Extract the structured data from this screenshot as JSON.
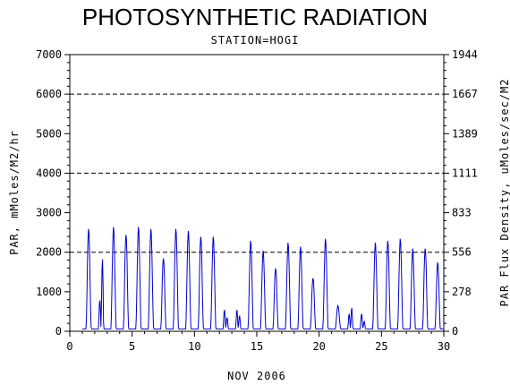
{
  "title": "PHOTOSYNTHETIC RADIATION",
  "subtitle": "STATION=HOGI",
  "chart_data": {
    "type": "line",
    "title": "PHOTOSYNTHETIC RADIATION",
    "subtitle": "STATION=HOGI",
    "xlabel": "NOV 2006",
    "ylabel": "PAR, mMoles/M2/hr",
    "y2label": "PAR Flux Density, uMoles/sec/M2",
    "xlim": [
      0,
      30
    ],
    "ylim": [
      0,
      7000
    ],
    "x_ticks": [
      0,
      5,
      10,
      15,
      20,
      25,
      30
    ],
    "x_tick_labels": [
      "0",
      "5",
      "10",
      "15",
      "20",
      "25",
      "30"
    ],
    "y_ticks": [
      0,
      1000,
      2000,
      3000,
      4000,
      5000,
      6000,
      7000
    ],
    "y_tick_labels": [
      "0",
      "1000",
      "2000",
      "3000",
      "4000",
      "5000",
      "6000",
      "7000"
    ],
    "y2_tick_labels": [
      "0",
      "278",
      "556",
      "833",
      "1111",
      "1389",
      "1667",
      "1944"
    ],
    "grid_y": [
      2000,
      4000,
      6000
    ],
    "grid_style": "dashed",
    "line_color": "#0000cc",
    "series": [
      {
        "daily_peaks": [
          {
            "day": 1,
            "peaks": [
              2600
            ]
          },
          {
            "day": 2,
            "peaks": [
              800,
              1850
            ]
          },
          {
            "day": 3,
            "peaks": [
              2650
            ]
          },
          {
            "day": 4,
            "peaks": [
              2450
            ]
          },
          {
            "day": 5,
            "peaks": [
              2650
            ]
          },
          {
            "day": 6,
            "peaks": [
              2600
            ]
          },
          {
            "day": 7,
            "peaks": [
              1850
            ]
          },
          {
            "day": 8,
            "peaks": [
              2600
            ]
          },
          {
            "day": 9,
            "peaks": [
              2550
            ]
          },
          {
            "day": 10,
            "peaks": [
              2400
            ]
          },
          {
            "day": 11,
            "peaks": [
              2400
            ]
          },
          {
            "day": 12,
            "peaks": [
              550,
              350
            ]
          },
          {
            "day": 13,
            "peaks": [
              550,
              400
            ]
          },
          {
            "day": 14,
            "peaks": [
              2300
            ]
          },
          {
            "day": 15,
            "peaks": [
              2050
            ]
          },
          {
            "day": 16,
            "peaks": [
              1600
            ]
          },
          {
            "day": 17,
            "peaks": [
              2250
            ]
          },
          {
            "day": 18,
            "peaks": [
              2150
            ]
          },
          {
            "day": 19,
            "peaks": [
              1350
            ]
          },
          {
            "day": 20,
            "peaks": [
              2350
            ]
          },
          {
            "day": 21,
            "peaks": [
              650
            ]
          },
          {
            "day": 22,
            "peaks": [
              450,
              600
            ]
          },
          {
            "day": 23,
            "peaks": [
              450,
              250
            ]
          },
          {
            "day": 24,
            "peaks": [
              2250
            ]
          },
          {
            "day": 25,
            "peaks": [
              2300
            ]
          },
          {
            "day": 26,
            "peaks": [
              2350
            ]
          },
          {
            "day": 27,
            "peaks": [
              2100
            ]
          },
          {
            "day": 28,
            "peaks": [
              2100
            ]
          },
          {
            "day": 29,
            "peaks": [
              1750
            ]
          }
        ]
      }
    ]
  }
}
